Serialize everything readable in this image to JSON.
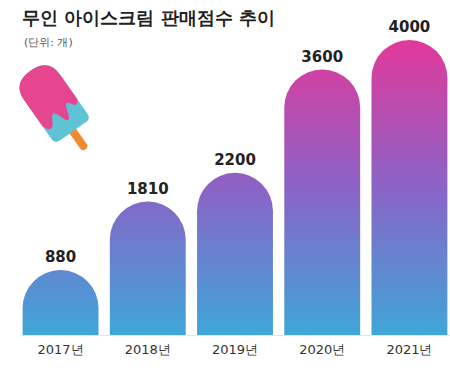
{
  "chart_data": {
    "type": "bar",
    "title": "무인 아이스크림 판매점수 추이",
    "subtitle": "(단위: 개)",
    "categories": [
      "2017년",
      "2018년",
      "2019년",
      "2020년",
      "2021년"
    ],
    "values": [
      880,
      1810,
      2200,
      3600,
      4000
    ],
    "color": "#3fa6d8",
    "ylim": [
      0,
      4000
    ],
    "data_labels": true,
    "tick_labels": "x"
  }
}
